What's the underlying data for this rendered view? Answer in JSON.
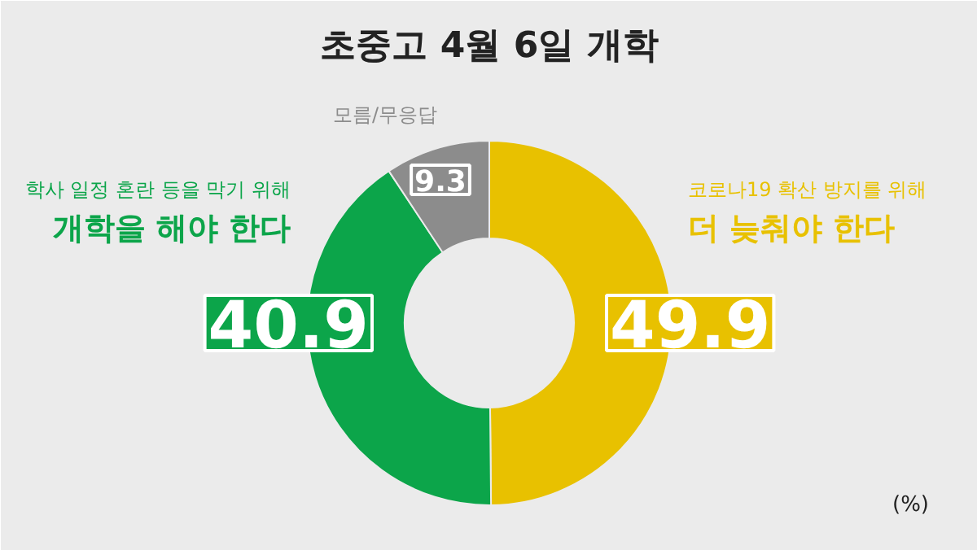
{
  "chart_data": {
    "type": "donut",
    "title": "초중고 4월 6일 개학",
    "categories": [
      "코로나19 확산 방지를 위해\n더 늦춰야 한다",
      "학사 일정 혼란 등을 막기 위해\n개학을 해야 한다",
      "모름/무응답"
    ],
    "values": [
      49.9,
      40.9,
      9.3
    ],
    "colors": [
      "#e8c100",
      "#0ca54a",
      "#8c8c8c"
    ],
    "data_labels": true,
    "annotations": [
      "(%)"
    ]
  }
}
